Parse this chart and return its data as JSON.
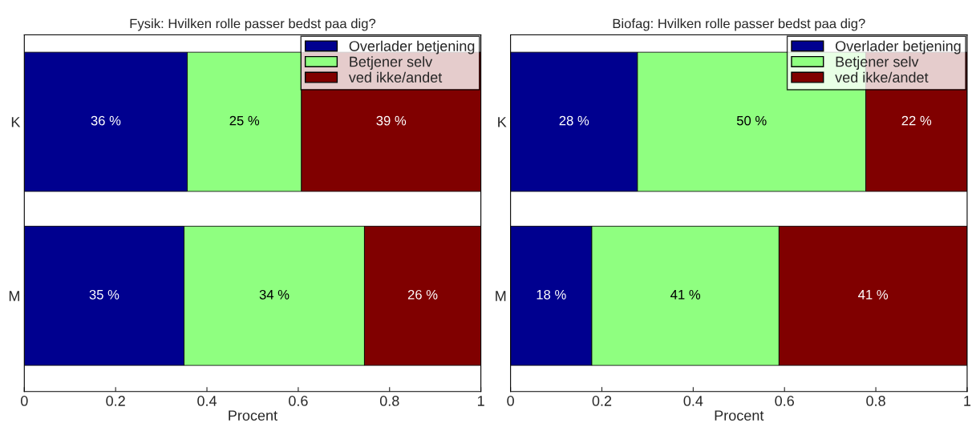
{
  "chart_data": [
    {
      "type": "bar",
      "orientation": "horizontal",
      "stacked": true,
      "title": "Fysik: Hvilken rolle passer bedst paa dig?",
      "xlabel": "Procent",
      "categories": [
        "K",
        "M"
      ],
      "xlim": [
        0,
        1
      ],
      "xticks": [
        0,
        0.2,
        0.4,
        0.6,
        0.8,
        1
      ],
      "legend": "top right",
      "grid": false,
      "annotations": [
        "34 %"
      ],
      "series": [
        {
          "name": "Overlader betjening",
          "color": "#00008f",
          "values": [
            0.357,
            0.35
          ],
          "value_labels": [
            "36 %",
            "35 %"
          ]
        },
        {
          "name": "Betjener selv",
          "color": "#8fff80",
          "values": [
            0.25,
            0.395
          ],
          "value_labels": [
            "25 %",
            null
          ]
        },
        {
          "name": "ved ikke/andet",
          "color": "#800000",
          "values": [
            0.393,
            0.255
          ],
          "value_labels": [
            "39 %",
            "26 %"
          ]
        }
      ]
    },
    {
      "type": "bar",
      "orientation": "horizontal",
      "stacked": true,
      "title": "Biofag: Hvilken rolle passer bedst paa dig?",
      "xlabel": "Procent",
      "categories": [
        "K",
        "M"
      ],
      "xlim": [
        0,
        1
      ],
      "xticks": [
        0,
        0.2,
        0.4,
        0.6,
        0.8,
        1
      ],
      "legend": "top right",
      "grid": false,
      "series": [
        {
          "name": "Overlader betjening",
          "color": "#00008f",
          "values": [
            0.278,
            0.178
          ],
          "value_labels": [
            "28 %",
            "18 %"
          ]
        },
        {
          "name": "Betjener selv",
          "color": "#8fff80",
          "values": [
            0.5,
            0.41
          ],
          "value_labels": [
            "50 %",
            "41 %"
          ]
        },
        {
          "name": "ved ikke/andet",
          "color": "#800000",
          "values": [
            0.222,
            0.412
          ],
          "value_labels": [
            "22 %",
            "41 %"
          ]
        }
      ]
    }
  ]
}
